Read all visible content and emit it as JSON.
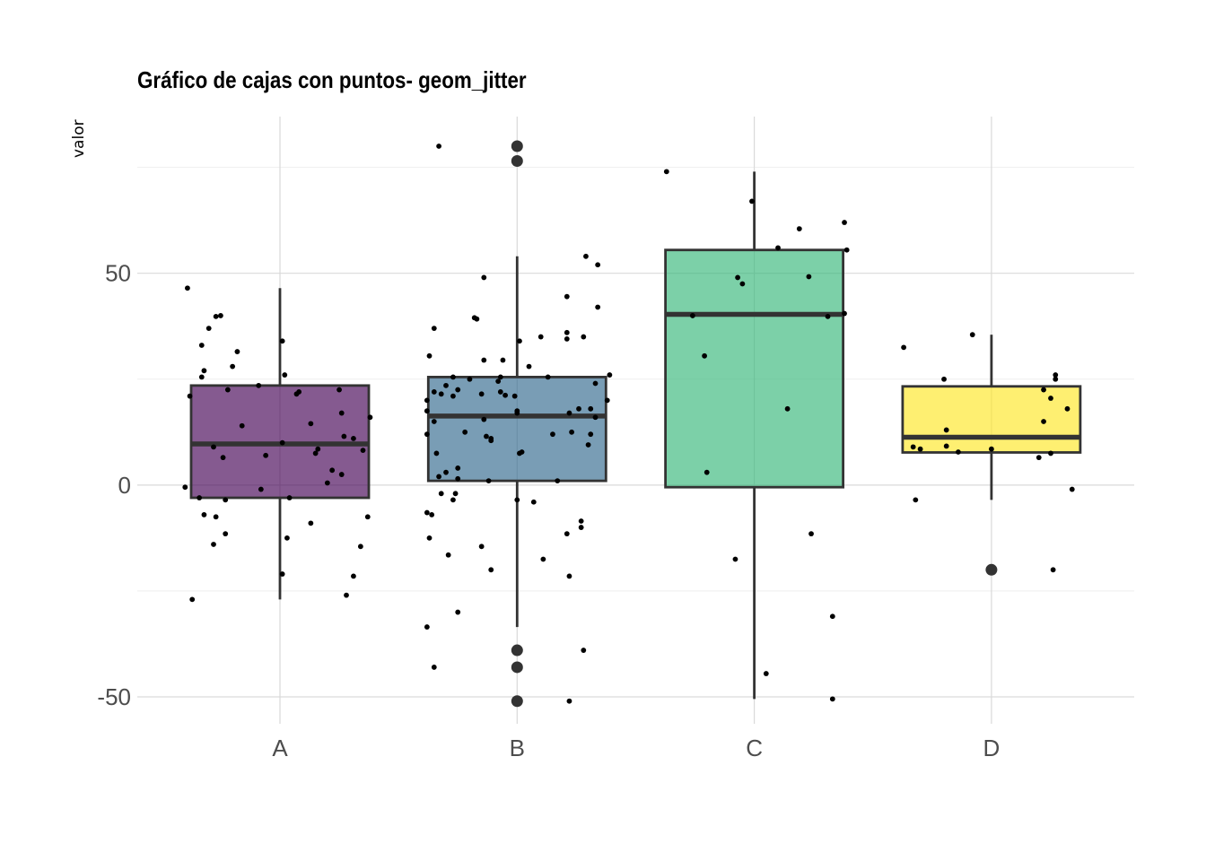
{
  "chart_data": {
    "type": "box",
    "title": "Gráfico de cajas con puntos- geom_jitter",
    "xlabel": "",
    "ylabel": "valor",
    "categories": [
      "A",
      "B",
      "C",
      "D"
    ],
    "ylim": [
      -58,
      83
    ],
    "y_ticks": [
      -50,
      0,
      50
    ],
    "grid": true,
    "legend": "none",
    "colors": [
      "#440154",
      "#31688e",
      "#35b779",
      "#fde725"
    ],
    "box_opacity": 0.65,
    "boxes": [
      {
        "category": "A",
        "lower_whisker": -27,
        "q1": -3,
        "median": 9.7,
        "q3": 23.5,
        "upper_whisker": 46.5,
        "outliers": []
      },
      {
        "category": "B",
        "lower_whisker": -33.5,
        "q1": 1,
        "median": 16.3,
        "q3": 25.5,
        "upper_whisker": 54,
        "outliers": [
          80,
          76.5,
          -39,
          -43,
          -51
        ]
      },
      {
        "category": "C",
        "lower_whisker": -50.5,
        "q1": -0.5,
        "median": 40.3,
        "q3": 55.5,
        "upper_whisker": 74,
        "outliers": []
      },
      {
        "category": "D",
        "lower_whisker": -3.5,
        "q1": 7.7,
        "median": 11.3,
        "q3": 23.3,
        "upper_whisker": 35.5,
        "outliers": [
          -20
        ]
      }
    ],
    "points": {
      "A": [
        [
          -0.39,
          46.5
        ],
        [
          -0.25,
          40
        ],
        [
          -0.27,
          39.8
        ],
        [
          -0.3,
          37
        ],
        [
          -0.33,
          33
        ],
        [
          -0.18,
          31.5
        ],
        [
          0.01,
          34
        ],
        [
          -0.2,
          28
        ],
        [
          -0.32,
          27
        ],
        [
          -0.33,
          25.5
        ],
        [
          0.02,
          26
        ],
        [
          -0.22,
          22.5
        ],
        [
          -0.09,
          23.5
        ],
        [
          0.08,
          22
        ],
        [
          0.07,
          21.5
        ],
        [
          -0.38,
          21
        ],
        [
          0.25,
          22.5
        ],
        [
          0.26,
          17
        ],
        [
          0.38,
          16
        ],
        [
          -0.16,
          14
        ],
        [
          0.13,
          14.5
        ],
        [
          0.27,
          11.5
        ],
        [
          0.31,
          11
        ],
        [
          0.01,
          10
        ],
        [
          -0.28,
          9
        ],
        [
          0.16,
          8.5
        ],
        [
          0.35,
          8.2
        ],
        [
          0.15,
          7.5
        ],
        [
          -0.24,
          6.5
        ],
        [
          -0.06,
          7
        ],
        [
          0.22,
          3.5
        ],
        [
          0.26,
          2.5
        ],
        [
          0.2,
          0.5
        ],
        [
          -0.4,
          -0.5
        ],
        [
          -0.08,
          -1
        ],
        [
          -0.34,
          -3
        ],
        [
          -0.23,
          -3.5
        ],
        [
          0.04,
          -3
        ],
        [
          -0.32,
          -7
        ],
        [
          -0.27,
          -7.5
        ],
        [
          0.37,
          -7.5
        ],
        [
          0.13,
          -9
        ],
        [
          -0.23,
          -11.5
        ],
        [
          -0.28,
          -14
        ],
        [
          0.34,
          -14.5
        ],
        [
          0.03,
          -12.5
        ],
        [
          0.31,
          -21.5
        ],
        [
          0.01,
          -21
        ],
        [
          0.28,
          -26
        ],
        [
          -0.37,
          -27
        ]
      ],
      "B": [
        [
          -0.33,
          80
        ],
        [
          -0.14,
          49
        ],
        [
          0.29,
          54
        ],
        [
          0.34,
          52
        ],
        [
          0.21,
          44.5
        ],
        [
          0.34,
          42
        ],
        [
          -0.18,
          39.5
        ],
        [
          -0.17,
          39.2
        ],
        [
          -0.35,
          37
        ],
        [
          0.21,
          36
        ],
        [
          0.21,
          34.5
        ],
        [
          0.28,
          35
        ],
        [
          0.01,
          34
        ],
        [
          0.1,
          35
        ],
        [
          0.05,
          28
        ],
        [
          -0.37,
          30.5
        ],
        [
          -0.14,
          29.5
        ],
        [
          -0.06,
          29.5
        ],
        [
          -0.27,
          25.5
        ],
        [
          -0.2,
          25
        ],
        [
          -0.08,
          24.5
        ],
        [
          -0.07,
          25.5
        ],
        [
          0.13,
          25.5
        ],
        [
          0.39,
          26
        ],
        [
          -0.3,
          23.5
        ],
        [
          0.33,
          24
        ],
        [
          -0.35,
          22
        ],
        [
          -0.25,
          22.5
        ],
        [
          -0.32,
          21.5
        ],
        [
          -0.27,
          21
        ],
        [
          -0.15,
          21.5
        ],
        [
          -0.07,
          22
        ],
        [
          -0.01,
          21
        ],
        [
          -0.05,
          21.2
        ],
        [
          0.38,
          20
        ],
        [
          -0.38,
          20
        ],
        [
          -0.38,
          17.5
        ],
        [
          0.26,
          18
        ],
        [
          0.31,
          18
        ],
        [
          0.22,
          17
        ],
        [
          0.33,
          16
        ],
        [
          0.0,
          17.5
        ],
        [
          0.0,
          17
        ],
        [
          -0.14,
          15.5
        ],
        [
          -0.35,
          15
        ],
        [
          -0.22,
          12.5
        ],
        [
          -0.38,
          12
        ],
        [
          0.15,
          12
        ],
        [
          0.23,
          12.5
        ],
        [
          0.31,
          12
        ],
        [
          -0.13,
          11.5
        ],
        [
          -0.11,
          11
        ],
        [
          -0.11,
          10.5
        ],
        [
          0.3,
          9.5
        ],
        [
          0.01,
          7.5
        ],
        [
          0.02,
          7.8
        ],
        [
          -0.34,
          7.5
        ],
        [
          -0.25,
          4
        ],
        [
          -0.3,
          3
        ],
        [
          -0.33,
          2
        ],
        [
          -0.25,
          1.5
        ],
        [
          -0.12,
          1
        ],
        [
          0.17,
          1
        ],
        [
          -0.32,
          -2
        ],
        [
          -0.26,
          -2
        ],
        [
          -0.27,
          -3.5
        ],
        [
          0.0,
          -3.5
        ],
        [
          0.07,
          -4
        ],
        [
          -0.38,
          -6.5
        ],
        [
          -0.36,
          -7
        ],
        [
          0.27,
          -8.5
        ],
        [
          0.27,
          -10
        ],
        [
          0.21,
          -11.5
        ],
        [
          -0.37,
          -12.5
        ],
        [
          -0.15,
          -14.5
        ],
        [
          -0.29,
          -16.5
        ],
        [
          0.11,
          -17.5
        ],
        [
          -0.11,
          -20
        ],
        [
          0.22,
          -21.5
        ],
        [
          -0.25,
          -30
        ],
        [
          -0.38,
          -33.5
        ],
        [
          0.28,
          -39
        ],
        [
          -0.35,
          -43
        ],
        [
          0.22,
          -51
        ]
      ],
      "C": [
        [
          -0.37,
          74
        ],
        [
          -0.01,
          67
        ],
        [
          0.19,
          60.5
        ],
        [
          0.38,
          62
        ],
        [
          0.1,
          56
        ],
        [
          0.39,
          55.5
        ],
        [
          -0.07,
          49
        ],
        [
          -0.05,
          47.5
        ],
        [
          0.23,
          49.2
        ],
        [
          -0.26,
          40
        ],
        [
          0.31,
          39.8
        ],
        [
          0.38,
          40.5
        ],
        [
          -0.21,
          30.5
        ],
        [
          0.14,
          18
        ],
        [
          -0.2,
          3
        ],
        [
          -0.08,
          -17.5
        ],
        [
          0.24,
          -11.5
        ],
        [
          0.33,
          -31
        ],
        [
          0.05,
          -44.5
        ],
        [
          0.33,
          -50.5
        ]
      ],
      "D": [
        [
          -0.37,
          32.5
        ],
        [
          -0.2,
          25
        ],
        [
          -0.08,
          35.5
        ],
        [
          0.27,
          26
        ],
        [
          0.27,
          25
        ],
        [
          0.22,
          22.5
        ],
        [
          0.25,
          20.5
        ],
        [
          0.32,
          18
        ],
        [
          0.22,
          15
        ],
        [
          -0.19,
          13
        ],
        [
          -0.33,
          9
        ],
        [
          -0.3,
          8.5
        ],
        [
          -0.19,
          9.2
        ],
        [
          -0.14,
          7.8
        ],
        [
          0.0,
          8.5
        ],
        [
          0.25,
          7.5
        ],
        [
          0.2,
          6.5
        ],
        [
          0.34,
          -1
        ],
        [
          -0.32,
          -3.5
        ],
        [
          0.26,
          -20
        ]
      ]
    }
  }
}
